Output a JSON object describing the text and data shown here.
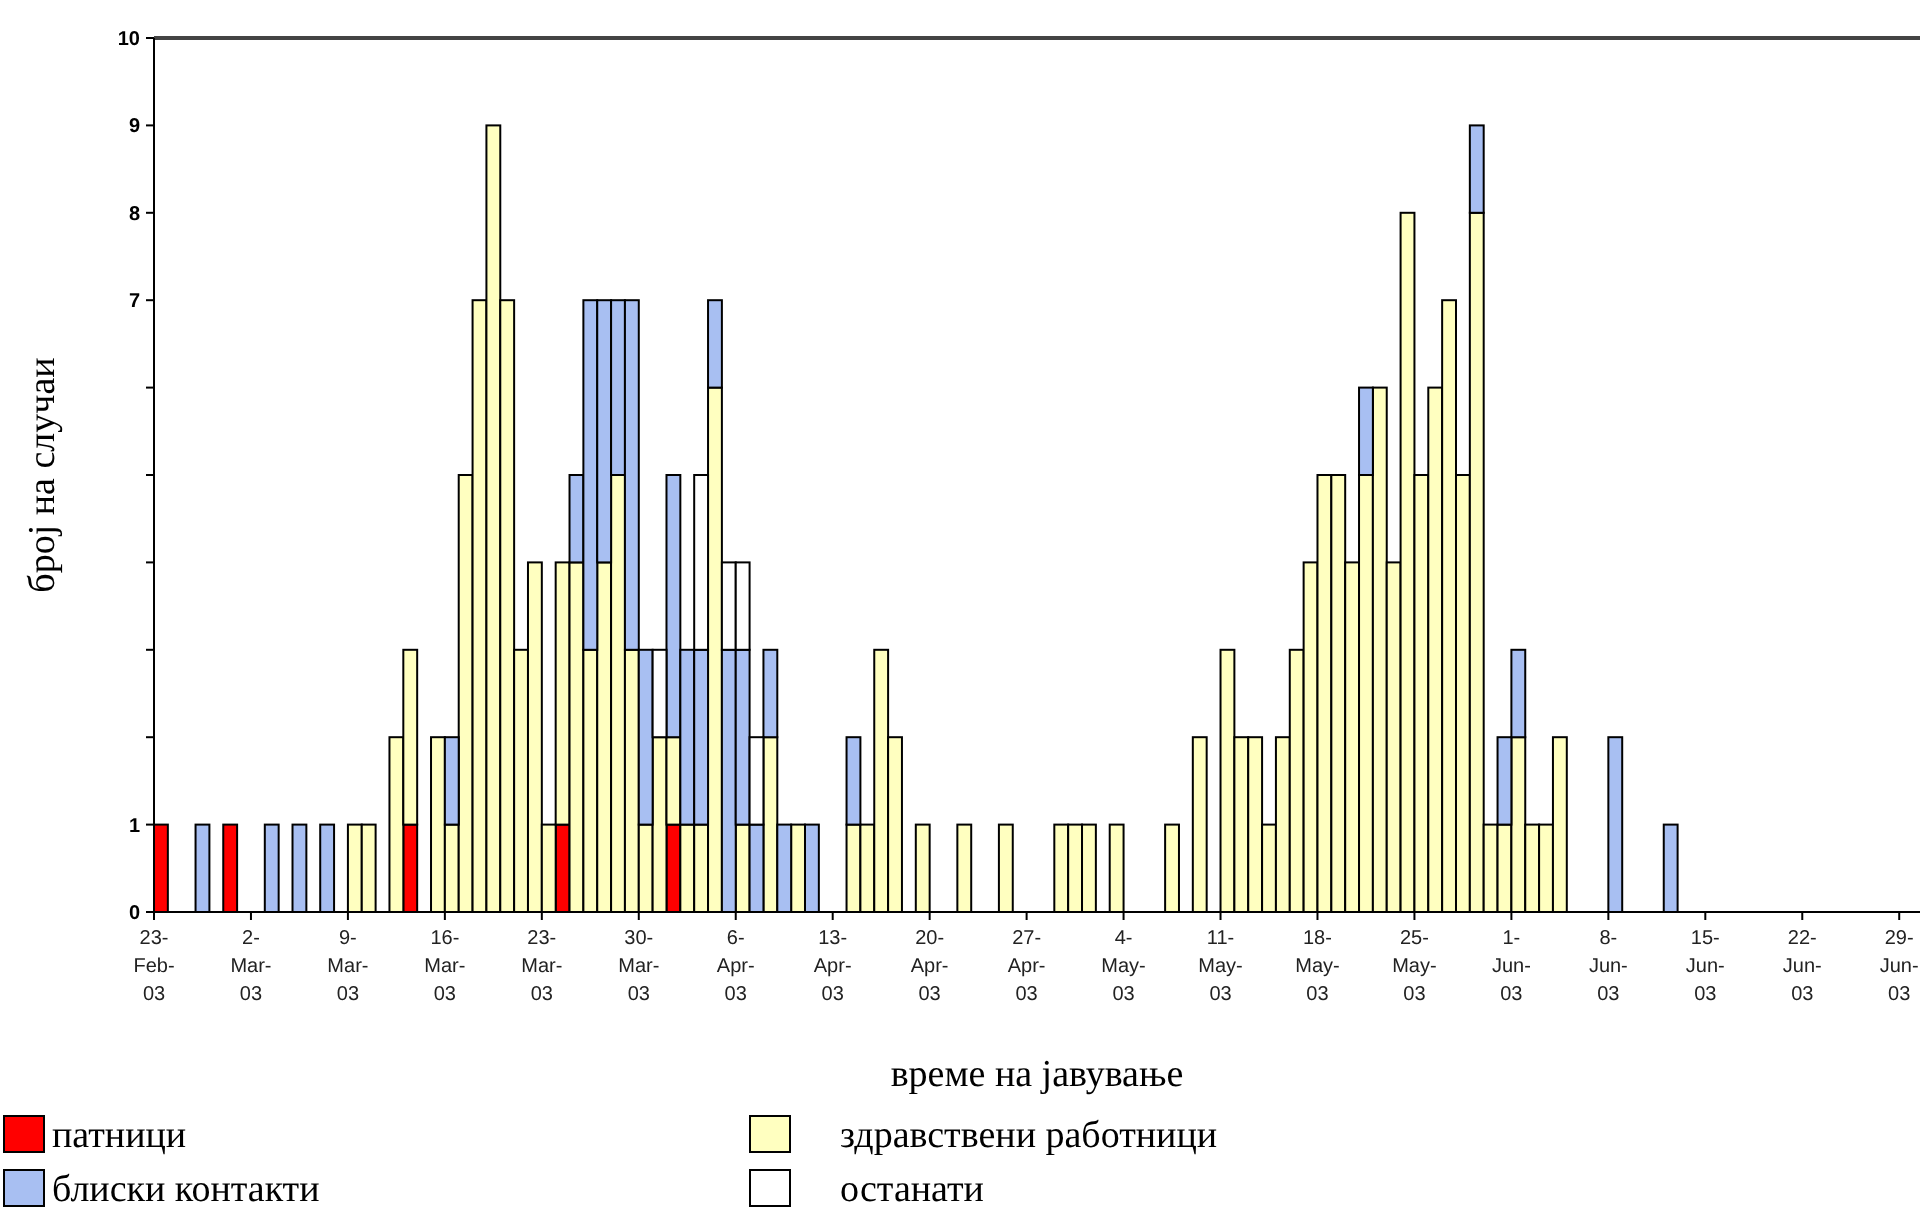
{
  "chart_data": {
    "type": "bar",
    "stacked": true,
    "xlabel": "време на јавување",
    "ylabel": "број на случаи",
    "categories": [
      "23-Feb-03",
      null,
      null,
      null,
      null,
      null,
      null,
      "2-Mar-03",
      null,
      null,
      null,
      null,
      null,
      null,
      "9-Mar-03",
      null,
      null,
      null,
      null,
      null,
      null,
      "16-Mar-03",
      null,
      null,
      null,
      null,
      null,
      null,
      "23-Mar-03",
      null,
      null,
      null,
      null,
      null,
      null,
      "30-Mar-03",
      null,
      null,
      null,
      null,
      null,
      null,
      "6-Apr-03",
      null,
      null,
      null,
      null,
      null,
      null,
      "13-Apr-03",
      null,
      null,
      null,
      null,
      null,
      null,
      "20-Apr-03",
      null,
      null,
      null,
      null,
      null,
      null,
      "27-Apr-03",
      null,
      null,
      null,
      null,
      null,
      null,
      "4-May-03",
      null,
      null,
      null,
      null,
      null,
      null,
      "11-May-03",
      null,
      null,
      null,
      null,
      null,
      null,
      "18-May-03",
      null,
      null,
      null,
      null,
      null,
      null,
      "25-May-03",
      null,
      null,
      null,
      null,
      null,
      null,
      "1-Jun-03",
      null,
      null,
      null,
      null,
      null,
      null,
      "8-Jun-03",
      null,
      null,
      null,
      null,
      null,
      null,
      "15-Jun-03",
      null,
      null,
      null,
      null,
      null,
      null,
      "22-Jun-03",
      null,
      null,
      null,
      null,
      null,
      null,
      "29-Jun-03"
    ],
    "series": [
      {
        "name": "патници",
        "color": "#ff0000",
        "values": [
          1,
          0,
          0,
          0,
          0,
          1,
          0,
          0,
          0,
          0,
          0,
          0,
          0,
          0,
          0,
          0,
          0,
          0,
          1,
          0,
          0,
          0,
          0,
          0,
          0,
          0,
          0,
          0,
          0,
          1,
          0,
          0,
          0,
          0,
          0,
          0,
          0,
          1,
          0,
          0,
          0,
          0,
          0,
          0,
          0,
          0,
          0,
          0,
          0,
          0,
          0,
          0,
          0,
          0,
          0,
          0,
          0,
          0,
          0,
          0,
          0,
          0,
          0,
          0,
          0,
          0,
          0,
          0,
          0,
          0,
          0,
          0,
          0,
          0,
          0,
          0,
          0,
          0,
          0,
          0,
          0,
          0,
          0,
          0,
          0,
          0,
          0,
          0,
          0,
          0,
          0,
          0,
          0,
          0,
          0,
          0,
          0,
          0,
          0,
          0,
          0,
          0,
          0,
          0,
          0,
          0,
          0,
          0,
          0,
          0,
          0,
          0,
          0,
          0,
          0,
          0,
          0,
          0,
          0,
          0,
          0,
          0,
          0,
          0,
          0,
          0,
          0
        ]
      },
      {
        "name": "здравствени работници",
        "color": "#ffffc0",
        "values": [
          0,
          0,
          0,
          0,
          0,
          0,
          0,
          0,
          0,
          0,
          0,
          0,
          0,
          0,
          1,
          1,
          0,
          2,
          2,
          0,
          2,
          1,
          5,
          7,
          9,
          7,
          3,
          4,
          1,
          3,
          4,
          3,
          4,
          5,
          3,
          1,
          2,
          1,
          1,
          1,
          6,
          0,
          1,
          0,
          2,
          0,
          1,
          0,
          0,
          0,
          1,
          1,
          3,
          2,
          0,
          1,
          0,
          0,
          1,
          0,
          0,
          1,
          0,
          0,
          0,
          1,
          1,
          1,
          0,
          1,
          0,
          0,
          0,
          1,
          0,
          2,
          0,
          3,
          2,
          2,
          1,
          2,
          3,
          4,
          5,
          5,
          4,
          5,
          6,
          4,
          8,
          5,
          6,
          7,
          5,
          8,
          1,
          1,
          2,
          1,
          1,
          2,
          0,
          0,
          0,
          0,
          0,
          0,
          0,
          0,
          0,
          0,
          0,
          0,
          0,
          0,
          0,
          0,
          0,
          0,
          0,
          0,
          0,
          0,
          0,
          0,
          0
        ]
      },
      {
        "name": "блиски контакти",
        "color": "#a8bff2",
        "values": [
          0,
          0,
          0,
          1,
          0,
          0,
          0,
          0,
          1,
          0,
          1,
          0,
          1,
          0,
          0,
          0,
          0,
          0,
          0,
          0,
          0,
          1,
          0,
          0,
          0,
          0,
          0,
          0,
          0,
          0,
          1,
          4,
          3,
          2,
          4,
          2,
          0,
          3,
          2,
          2,
          1,
          3,
          2,
          1,
          1,
          1,
          0,
          1,
          0,
          0,
          1,
          0,
          0,
          0,
          0,
          0,
          0,
          0,
          0,
          0,
          0,
          0,
          0,
          0,
          0,
          0,
          0,
          0,
          0,
          0,
          0,
          0,
          0,
          0,
          0,
          0,
          0,
          0,
          0,
          0,
          0,
          0,
          0,
          0,
          0,
          0,
          0,
          1,
          0,
          0,
          0,
          0,
          0,
          0,
          0,
          1,
          0,
          1,
          1,
          0,
          0,
          0,
          0,
          0,
          0,
          2,
          0,
          0,
          0,
          1,
          0,
          0,
          0,
          0,
          0,
          0,
          0,
          0,
          0,
          0,
          0,
          0,
          0,
          0,
          0,
          0,
          0
        ]
      },
      {
        "name": "останати",
        "color": "#ffffff",
        "values": [
          0,
          0,
          0,
          0,
          0,
          0,
          0,
          0,
          0,
          0,
          0,
          0,
          0,
          0,
          0,
          0,
          0,
          0,
          0,
          0,
          0,
          0,
          0,
          0,
          0,
          0,
          0,
          0,
          0,
          0,
          0,
          0,
          0,
          0,
          0,
          0,
          1,
          0,
          0,
          2,
          0,
          1,
          1,
          1,
          0,
          0,
          0,
          0,
          0,
          0,
          0,
          0,
          0,
          0,
          0,
          0,
          0,
          0,
          0,
          0,
          0,
          0,
          0,
          0,
          0,
          0,
          0,
          0,
          0,
          0,
          0,
          0,
          0,
          0,
          0,
          0,
          0,
          0,
          0,
          0,
          0,
          0,
          0,
          0,
          0,
          0,
          0,
          0,
          0,
          0,
          0,
          0,
          0,
          0,
          0,
          0,
          0,
          0,
          0,
          0,
          0,
          0,
          0,
          0,
          0,
          0,
          0,
          0,
          0,
          0,
          0,
          0,
          0,
          0,
          0,
          0,
          0,
          0,
          0,
          0,
          0,
          0,
          0,
          0,
          0,
          0,
          0
        ]
      }
    ],
    "ylim": [
      0,
      10
    ],
    "yticks": [
      0,
      1,
      {
        "value": 2,
        "label": null
      },
      {
        "value": 3,
        "label": null
      },
      {
        "value": 4,
        "label": null
      },
      {
        "value": 5,
        "label": null
      },
      {
        "value": 6,
        "label": null
      },
      7,
      8,
      9,
      10
    ],
    "grid": false,
    "legend": "bottom"
  }
}
